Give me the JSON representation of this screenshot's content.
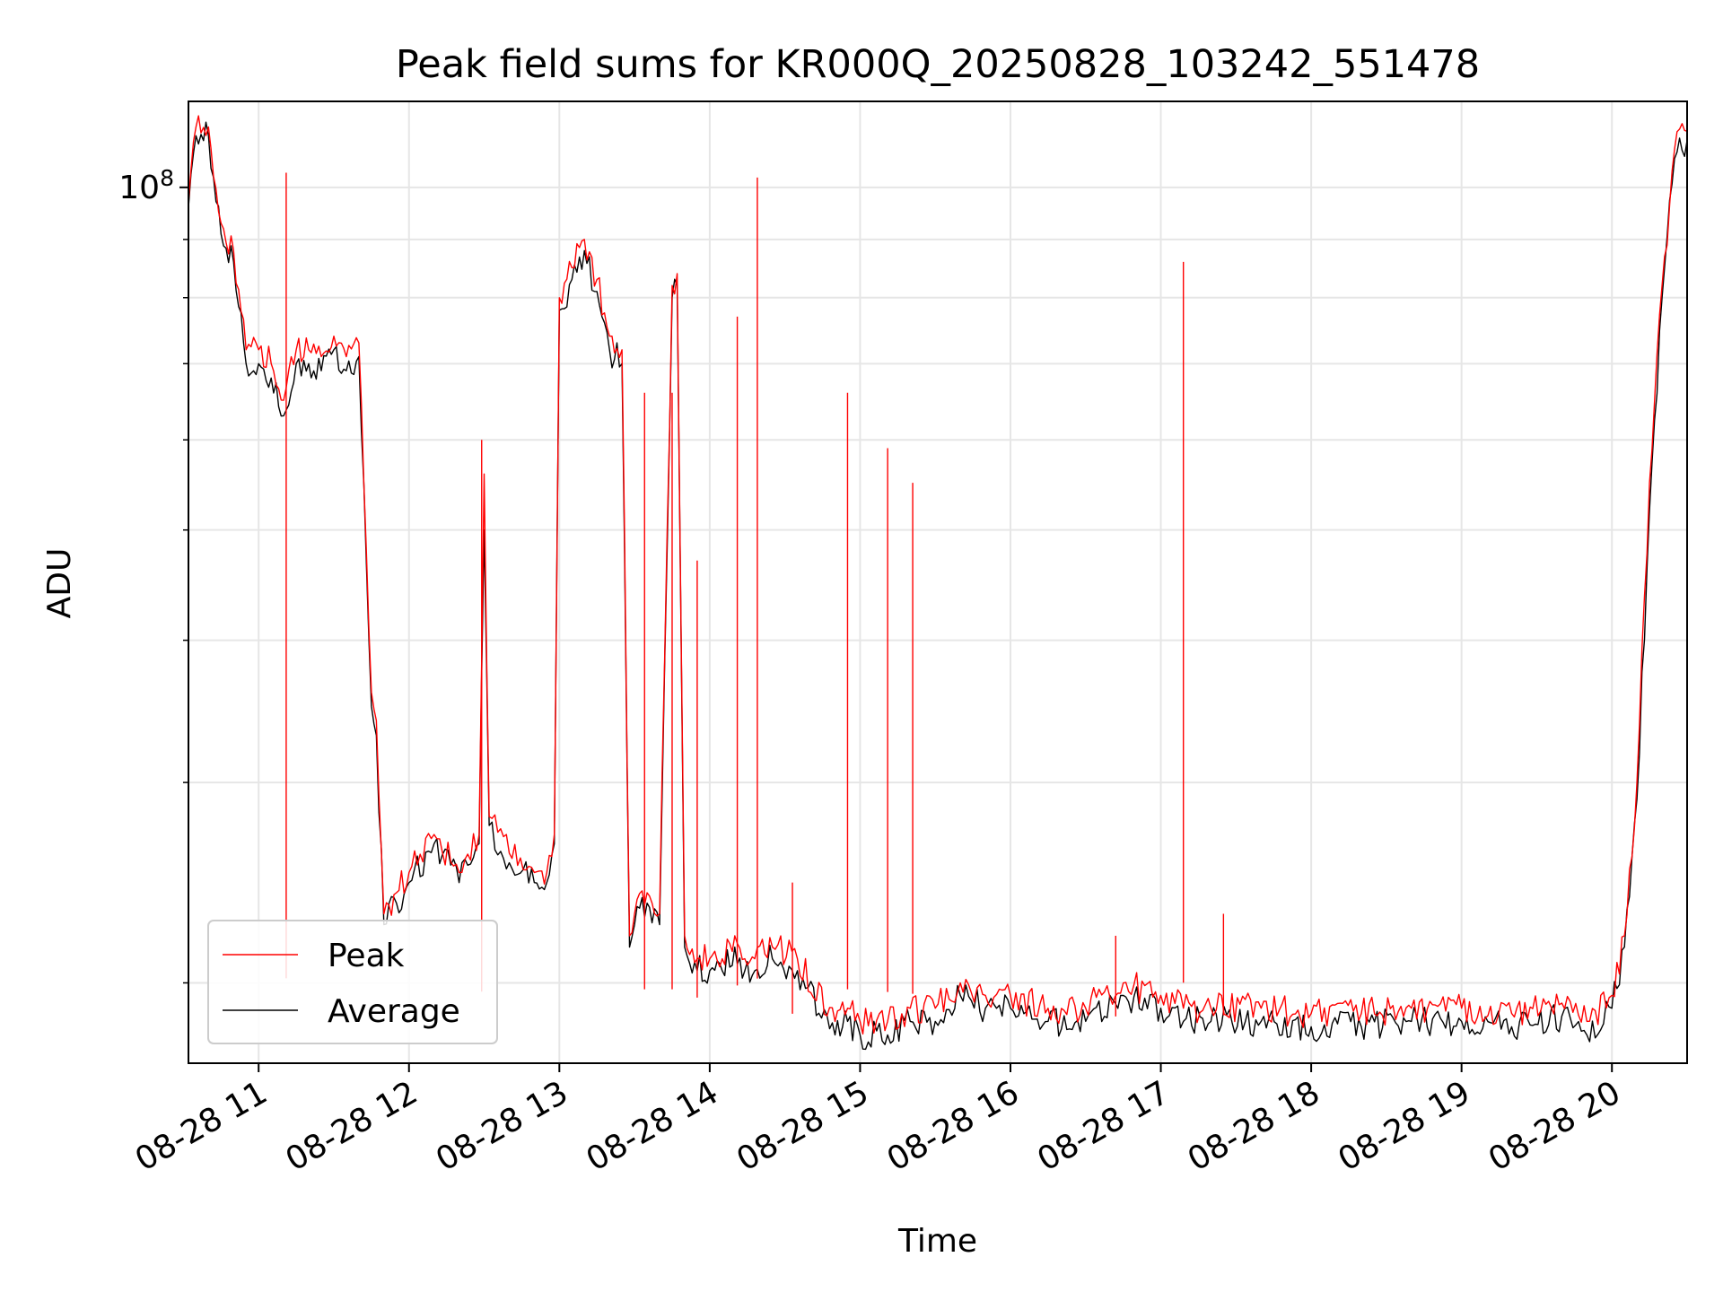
{
  "chart_data": {
    "type": "line",
    "title": "Peak field sums for KR000Q_20250828_103242_551478",
    "xlabel": "Time",
    "ylabel": "ADU",
    "y_scale": "log",
    "grid": true,
    "legend_position": "lower-left",
    "xlim": [
      "2025-08-28 10:32",
      "2025-08-28 20:30"
    ],
    "ylim": [
      17000000,
      119000000
    ],
    "x_tick_labels": [
      "08-28 11",
      "08-28 12",
      "08-28 13",
      "08-28 14",
      "08-28 15",
      "08-28 16",
      "08-28 17",
      "08-28 18",
      "08-28 19",
      "08-28 20"
    ],
    "x_ticks": [
      "2025-08-28 11:00",
      "2025-08-28 12:00",
      "2025-08-28 13:00",
      "2025-08-28 14:00",
      "2025-08-28 15:00",
      "2025-08-28 16:00",
      "2025-08-28 17:00",
      "2025-08-28 18:00",
      "2025-08-28 19:00",
      "2025-08-28 20:00"
    ],
    "y_tick_label_base": "10",
    "y_tick_label_exp": "8",
    "y_major_ticks": [
      100000000
    ],
    "y_minor_ticks": [
      20000000,
      30000000,
      40000000,
      50000000,
      60000000,
      70000000,
      80000000,
      90000000
    ],
    "series": [
      {
        "name": "Peak",
        "color": "#ff0000",
        "x": [
          "2025-08-28 10:32",
          "2025-08-28 10:35",
          "2025-08-28 10:40",
          "2025-08-28 10:45",
          "2025-08-28 10:50",
          "2025-08-28 10:55",
          "2025-08-28 11:00",
          "2025-08-28 11:05",
          "2025-08-28 11:10",
          "2025-08-28 11:15",
          "2025-08-28 11:20",
          "2025-08-28 11:25",
          "2025-08-28 11:30",
          "2025-08-28 11:35",
          "2025-08-28 11:40",
          "2025-08-28 11:45",
          "2025-08-28 11:47",
          "2025-08-28 11:50",
          "2025-08-28 11:55",
          "2025-08-28 12:00",
          "2025-08-28 12:10",
          "2025-08-28 12:20",
          "2025-08-28 12:28",
          "2025-08-28 12:30",
          "2025-08-28 12:32",
          "2025-08-28 12:40",
          "2025-08-28 12:50",
          "2025-08-28 12:55",
          "2025-08-28 12:58",
          "2025-08-28 13:00",
          "2025-08-28 13:05",
          "2025-08-28 13:10",
          "2025-08-28 13:15",
          "2025-08-28 13:20",
          "2025-08-28 13:25",
          "2025-08-28 13:28",
          "2025-08-28 13:30",
          "2025-08-28 13:35",
          "2025-08-28 13:40",
          "2025-08-28 13:45",
          "2025-08-28 13:47",
          "2025-08-28 13:50",
          "2025-08-28 13:55",
          "2025-08-28 14:00",
          "2025-08-28 14:05",
          "2025-08-28 14:10",
          "2025-08-28 14:14",
          "2025-08-28 14:18",
          "2025-08-28 14:25",
          "2025-08-28 14:35",
          "2025-08-28 14:50",
          "2025-08-28 14:55",
          "2025-08-28 15:00",
          "2025-08-28 15:11",
          "2025-08-28 15:20",
          "2025-08-28 15:30",
          "2025-08-28 15:40",
          "2025-08-28 15:50",
          "2025-08-28 16:00",
          "2025-08-28 16:15",
          "2025-08-28 16:30",
          "2025-08-28 16:45",
          "2025-08-28 17:00",
          "2025-08-28 17:09",
          "2025-08-28 17:20",
          "2025-08-28 17:40",
          "2025-08-28 18:00",
          "2025-08-28 18:20",
          "2025-08-28 18:40",
          "2025-08-28 19:00",
          "2025-08-28 19:20",
          "2025-08-28 19:40",
          "2025-08-28 19:50",
          "2025-08-28 20:00",
          "2025-08-28 20:05",
          "2025-08-28 20:10",
          "2025-08-28 20:15",
          "2025-08-28 20:20",
          "2025-08-28 20:25",
          "2025-08-28 20:30"
        ],
        "values": [
          97000000,
          113000000,
          113000000,
          93000000,
          88000000,
          72000000,
          72000000,
          70000000,
          65000000,
          72000000,
          72000000,
          71000000,
          74000000,
          71000000,
          73000000,
          36000000,
          34000000,
          23000000,
          24000000,
          25000000,
          27000000,
          25000000,
          27000000,
          56000000,
          28000000,
          26000000,
          25000000,
          25000000,
          27000000,
          80000000,
          85000000,
          90000000,
          83000000,
          74000000,
          72000000,
          22000000,
          23000000,
          24000000,
          23000000,
          82000000,
          84000000,
          22000000,
          21000000,
          21000000,
          21000000,
          22000000,
          21000000,
          21000000,
          21500000,
          21000000,
          18500000,
          19000000,
          18500000,
          18500000,
          19000000,
          19000000,
          20000000,
          19500000,
          19500000,
          19000000,
          19000000,
          20000000,
          19500000,
          19000000,
          19000000,
          19000000,
          18800000,
          18800000,
          19000000,
          19000000,
          18800000,
          19200000,
          18500000,
          19500000,
          22000000,
          30000000,
          55000000,
          82000000,
          108000000,
          112000000
        ]
      },
      {
        "name": "Average",
        "color": "#000000",
        "x": [
          "2025-08-28 10:32",
          "2025-08-28 10:35",
          "2025-08-28 10:40",
          "2025-08-28 10:45",
          "2025-08-28 10:50",
          "2025-08-28 10:55",
          "2025-08-28 11:00",
          "2025-08-28 11:05",
          "2025-08-28 11:10",
          "2025-08-28 11:15",
          "2025-08-28 11:20",
          "2025-08-28 11:25",
          "2025-08-28 11:30",
          "2025-08-28 11:35",
          "2025-08-28 11:40",
          "2025-08-28 11:45",
          "2025-08-28 11:47",
          "2025-08-28 11:50",
          "2025-08-28 11:55",
          "2025-08-28 12:00",
          "2025-08-28 12:10",
          "2025-08-28 12:20",
          "2025-08-28 12:28",
          "2025-08-28 12:30",
          "2025-08-28 12:32",
          "2025-08-28 12:40",
          "2025-08-28 12:50",
          "2025-08-28 12:55",
          "2025-08-28 12:58",
          "2025-08-28 13:00",
          "2025-08-28 13:05",
          "2025-08-28 13:10",
          "2025-08-28 13:15",
          "2025-08-28 13:20",
          "2025-08-28 13:25",
          "2025-08-28 13:28",
          "2025-08-28 13:30",
          "2025-08-28 13:35",
          "2025-08-28 13:40",
          "2025-08-28 13:45",
          "2025-08-28 13:47",
          "2025-08-28 13:50",
          "2025-08-28 13:55",
          "2025-08-28 14:00",
          "2025-08-28 14:05",
          "2025-08-28 14:10",
          "2025-08-28 14:14",
          "2025-08-28 14:18",
          "2025-08-28 14:25",
          "2025-08-28 14:35",
          "2025-08-28 14:50",
          "2025-08-28 14:55",
          "2025-08-28 15:00",
          "2025-08-28 15:11",
          "2025-08-28 15:20",
          "2025-08-28 15:30",
          "2025-08-28 15:40",
          "2025-08-28 15:50",
          "2025-08-28 16:00",
          "2025-08-28 16:15",
          "2025-08-28 16:30",
          "2025-08-28 16:45",
          "2025-08-28 17:00",
          "2025-08-28 17:09",
          "2025-08-28 17:20",
          "2025-08-28 17:40",
          "2025-08-28 18:00",
          "2025-08-28 18:20",
          "2025-08-28 18:40",
          "2025-08-28 19:00",
          "2025-08-28 19:20",
          "2025-08-28 19:40",
          "2025-08-28 19:50",
          "2025-08-28 20:00",
          "2025-08-28 20:05",
          "2025-08-28 20:10",
          "2025-08-28 20:15",
          "2025-08-28 20:20",
          "2025-08-28 20:25",
          "2025-08-28 20:30"
        ],
        "values": [
          96000000,
          111000000,
          111000000,
          91000000,
          86000000,
          70000000,
          70000000,
          68000000,
          63000000,
          70000000,
          70000000,
          69000000,
          72000000,
          69000000,
          71000000,
          35000000,
          33000000,
          22500000,
          23500000,
          24500000,
          26500000,
          24500000,
          26500000,
          50000000,
          27500000,
          25500000,
          24500000,
          24500000,
          26500000,
          78000000,
          83000000,
          88000000,
          81000000,
          72000000,
          70000000,
          21500000,
          22500000,
          23500000,
          22500000,
          80000000,
          82000000,
          21500000,
          20500000,
          20500000,
          20500000,
          21500000,
          20500000,
          20500000,
          21000000,
          20500000,
          18000000,
          18500000,
          18000000,
          18000000,
          18500000,
          18500000,
          19500000,
          19000000,
          19000000,
          18500000,
          18500000,
          19500000,
          19000000,
          18500000,
          18500000,
          18500000,
          18300000,
          18300000,
          18500000,
          18500000,
          18300000,
          18700000,
          18000000,
          19000000,
          21500000,
          29000000,
          52000000,
          80000000,
          106000000,
          110000000
        ]
      }
    ],
    "peak_spikes": [
      {
        "x": "2025-08-28 11:11",
        "y": 103000000
      },
      {
        "x": "2025-08-28 12:29",
        "y": 60000000
      },
      {
        "x": "2025-08-28 13:34",
        "y": 66000000
      },
      {
        "x": "2025-08-28 13:45",
        "y": 66000000
      },
      {
        "x": "2025-08-28 13:55",
        "y": 47000000
      },
      {
        "x": "2025-08-28 14:11",
        "y": 77000000
      },
      {
        "x": "2025-08-28 14:19",
        "y": 102000000
      },
      {
        "x": "2025-08-28 14:55",
        "y": 66000000
      },
      {
        "x": "2025-08-28 15:11",
        "y": 59000000
      },
      {
        "x": "2025-08-28 15:21",
        "y": 55000000
      },
      {
        "x": "2025-08-28 17:09",
        "y": 86000000
      },
      {
        "x": "2025-08-28 17:25",
        "y": 23000000
      },
      {
        "x": "2025-08-28 16:42",
        "y": 22000000
      },
      {
        "x": "2025-08-28 14:33",
        "y": 24500000
      }
    ]
  }
}
